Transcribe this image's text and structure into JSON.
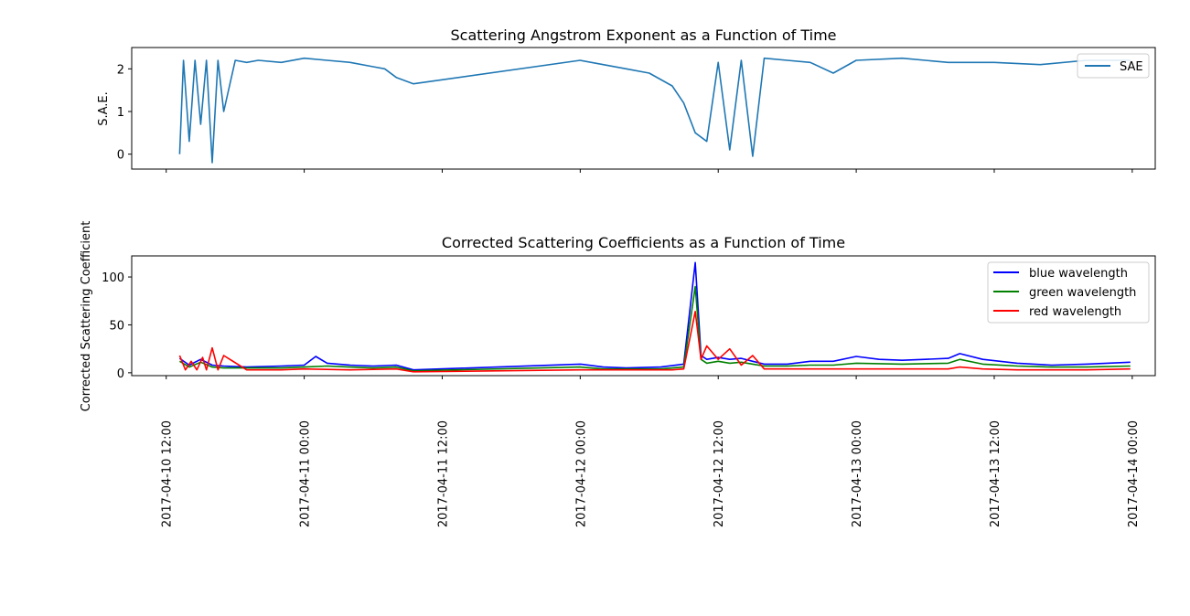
{
  "chart_data": [
    {
      "type": "line",
      "title": "Scattering Angstrom Exponent as a Function of Time",
      "xlabel": "",
      "ylabel": "S.A.E.",
      "xlim": [
        "2017-04-10 09:00",
        "2017-04-14 02:00"
      ],
      "ylim": [
        -0.35,
        2.5
      ],
      "y_ticks": [
        0,
        1,
        2
      ],
      "x_tick_labels_shown": false,
      "grid": false,
      "legend": "top-right",
      "series": [
        {
          "name": "SAE",
          "color": "#1f77b4",
          "x": [
            "2017-04-10 13:10",
            "2017-04-10 13:30",
            "2017-04-10 14:00",
            "2017-04-10 14:30",
            "2017-04-10 15:00",
            "2017-04-10 15:30",
            "2017-04-10 16:00",
            "2017-04-10 16:30",
            "2017-04-10 17:00",
            "2017-04-10 18:00",
            "2017-04-10 19:00",
            "2017-04-10 20:00",
            "2017-04-10 22:00",
            "2017-04-11 00:00",
            "2017-04-11 02:00",
            "2017-04-11 04:00",
            "2017-04-11 06:00",
            "2017-04-11 07:00",
            "2017-04-11 08:00",
            "2017-04-11 09:30",
            "2017-04-12 00:00",
            "2017-04-12 02:00",
            "2017-04-12 04:00",
            "2017-04-12 06:00",
            "2017-04-12 08:00",
            "2017-04-12 09:00",
            "2017-04-12 10:00",
            "2017-04-12 11:00",
            "2017-04-12 12:00",
            "2017-04-12 13:00",
            "2017-04-12 14:00",
            "2017-04-12 15:00",
            "2017-04-12 16:00",
            "2017-04-12 18:00",
            "2017-04-12 20:00",
            "2017-04-12 22:00",
            "2017-04-13 00:00",
            "2017-04-13 04:00",
            "2017-04-13 08:00",
            "2017-04-13 12:00",
            "2017-04-13 16:00",
            "2017-04-13 20:00",
            "2017-04-13 23:50"
          ],
          "y": [
            0.0,
            2.2,
            0.3,
            2.2,
            0.7,
            2.2,
            -0.2,
            2.2,
            1.0,
            2.2,
            2.15,
            2.2,
            2.15,
            2.25,
            2.2,
            2.15,
            2.05,
            2.0,
            1.8,
            1.65,
            2.2,
            2.1,
            2.0,
            1.9,
            1.6,
            1.2,
            0.5,
            0.3,
            2.15,
            0.1,
            2.2,
            -0.05,
            2.25,
            2.2,
            2.15,
            1.9,
            2.2,
            2.25,
            2.15,
            2.15,
            2.1,
            2.2,
            2.2
          ]
        }
      ]
    },
    {
      "type": "line",
      "title": "Corrected Scattering Coefficients as a Function of Time",
      "xlabel": "",
      "ylabel": "Corrected Scattering Coefficient",
      "xlim": [
        "2017-04-10 09:00",
        "2017-04-14 02:00"
      ],
      "ylim": [
        -3,
        122
      ],
      "y_ticks": [
        0,
        50,
        100
      ],
      "x_tick_labels": [
        "2017-04-10 12:00",
        "2017-04-11 00:00",
        "2017-04-11 12:00",
        "2017-04-12 00:00",
        "2017-04-12 12:00",
        "2017-04-13 00:00",
        "2017-04-13 12:00",
        "2017-04-14 00:00"
      ],
      "grid": false,
      "legend": "top-right",
      "series": [
        {
          "name": "blue wavelength",
          "color": "#0000ff",
          "x": [
            "2017-04-10 13:10",
            "2017-04-10 14:00",
            "2017-04-10 15:00",
            "2017-04-10 16:00",
            "2017-04-10 17:00",
            "2017-04-10 19:00",
            "2017-04-10 22:00",
            "2017-04-11 00:00",
            "2017-04-11 01:00",
            "2017-04-11 02:00",
            "2017-04-11 04:00",
            "2017-04-11 06:00",
            "2017-04-11 08:00",
            "2017-04-11 09:30",
            "2017-04-12 00:00",
            "2017-04-12 02:00",
            "2017-04-12 04:00",
            "2017-04-12 07:00",
            "2017-04-12 09:00",
            "2017-04-12 10:00",
            "2017-04-12 10:30",
            "2017-04-12 11:00",
            "2017-04-12 12:00",
            "2017-04-12 13:00",
            "2017-04-12 14:00",
            "2017-04-12 15:00",
            "2017-04-12 16:00",
            "2017-04-12 18:00",
            "2017-04-12 20:00",
            "2017-04-12 22:00",
            "2017-04-13 00:00",
            "2017-04-13 02:00",
            "2017-04-13 04:00",
            "2017-04-13 06:00",
            "2017-04-13 08:00",
            "2017-04-13 09:00",
            "2017-04-13 11:00",
            "2017-04-13 14:00",
            "2017-04-13 17:00",
            "2017-04-13 20:00",
            "2017-04-13 23:50"
          ],
          "y": [
            15,
            8,
            14,
            8,
            7,
            6,
            7,
            8,
            17,
            10,
            8,
            7,
            8,
            3,
            9,
            6,
            5,
            6,
            9,
            115,
            18,
            14,
            16,
            14,
            15,
            12,
            9,
            9,
            12,
            12,
            17,
            14,
            13,
            14,
            15,
            20,
            14,
            10,
            8,
            9,
            11
          ]
        },
        {
          "name": "green wavelength",
          "color": "#008000",
          "x": [
            "2017-04-10 13:10",
            "2017-04-10 14:00",
            "2017-04-10 15:00",
            "2017-04-10 16:00",
            "2017-04-10 17:00",
            "2017-04-10 19:00",
            "2017-04-10 22:00",
            "2017-04-11 00:00",
            "2017-04-11 02:00",
            "2017-04-11 04:00",
            "2017-04-11 06:00",
            "2017-04-11 08:00",
            "2017-04-11 09:30",
            "2017-04-12 00:00",
            "2017-04-12 02:00",
            "2017-04-12 04:00",
            "2017-04-12 07:00",
            "2017-04-12 09:00",
            "2017-04-12 10:00",
            "2017-04-12 10:30",
            "2017-04-12 11:00",
            "2017-04-12 12:00",
            "2017-04-12 13:00",
            "2017-04-12 14:00",
            "2017-04-12 15:00",
            "2017-04-12 16:00",
            "2017-04-12 18:00",
            "2017-04-12 20:00",
            "2017-04-12 22:00",
            "2017-04-13 00:00",
            "2017-04-13 04:00",
            "2017-04-13 08:00",
            "2017-04-13 09:00",
            "2017-04-13 11:00",
            "2017-04-13 14:00",
            "2017-04-13 17:00",
            "2017-04-13 20:00",
            "2017-04-13 23:50"
          ],
          "y": [
            12,
            6,
            11,
            6,
            5,
            5,
            5,
            6,
            7,
            6,
            5,
            6,
            2,
            6,
            4,
            4,
            4,
            6,
            90,
            14,
            10,
            12,
            10,
            11,
            9,
            7,
            7,
            8,
            8,
            10,
            9,
            10,
            14,
            9,
            7,
            6,
            6,
            7
          ]
        },
        {
          "name": "red wavelength",
          "color": "#ff0000",
          "x": [
            "2017-04-10 13:10",
            "2017-04-10 13:40",
            "2017-04-10 14:10",
            "2017-04-10 14:40",
            "2017-04-10 15:10",
            "2017-04-10 15:30",
            "2017-04-10 16:00",
            "2017-04-10 16:30",
            "2017-04-10 17:00",
            "2017-04-10 19:00",
            "2017-04-10 22:00",
            "2017-04-11 00:00",
            "2017-04-11 04:00",
            "2017-04-11 08:00",
            "2017-04-11 09:30",
            "2017-04-12 00:00",
            "2017-04-12 04:00",
            "2017-04-12 08:00",
            "2017-04-12 09:00",
            "2017-04-12 10:00",
            "2017-04-12 10:30",
            "2017-04-12 11:00",
            "2017-04-12 12:00",
            "2017-04-12 13:00",
            "2017-04-12 14:00",
            "2017-04-12 15:00",
            "2017-04-12 16:00",
            "2017-04-12 18:00",
            "2017-04-12 22:00",
            "2017-04-13 00:00",
            "2017-04-13 04:00",
            "2017-04-13 08:00",
            "2017-04-13 09:00",
            "2017-04-13 11:00",
            "2017-04-13 14:00",
            "2017-04-13 20:00",
            "2017-04-13 23:50"
          ],
          "y": [
            18,
            3,
            12,
            3,
            16,
            3,
            26,
            3,
            18,
            3,
            3,
            4,
            3,
            4,
            1,
            3,
            3,
            3,
            4,
            64,
            14,
            28,
            14,
            25,
            8,
            18,
            4,
            4,
            4,
            4,
            4,
            4,
            6,
            4,
            3,
            3,
            4
          ]
        }
      ]
    }
  ]
}
